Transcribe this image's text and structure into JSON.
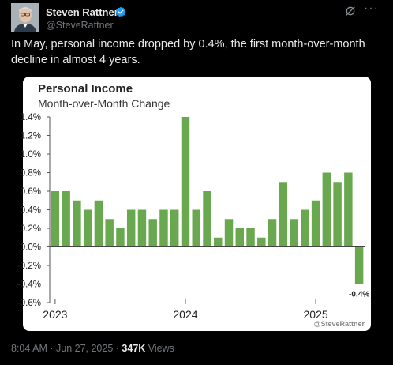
{
  "author": {
    "display_name": "Steven Rattner",
    "handle": "@SteveRattner"
  },
  "tweet": {
    "text": "In May, personal income dropped by 0.4%, the first month-over-month decline in almost 4 years."
  },
  "icons": {
    "verified": "verified-badge-icon",
    "grok": "grok-icon",
    "more": "more-icon"
  },
  "colors": {
    "bar": "#6aa84f",
    "verified": "#1d9bf0"
  },
  "chart_data": {
    "type": "bar",
    "title": "Personal Income",
    "subtitle": "Month-over-Month Change",
    "ylim": [
      -0.6,
      1.4
    ],
    "yticks": [
      "1.4%",
      "1.2%",
      "1.0%",
      "0.8%",
      "0.6%",
      "0.4%",
      "0.2%",
      "0.0%",
      "-0.2%",
      "-0.4%",
      "-0.6%"
    ],
    "ytick_values": [
      1.4,
      1.2,
      1.0,
      0.8,
      0.6,
      0.4,
      0.2,
      0.0,
      -0.2,
      -0.4,
      -0.6
    ],
    "x_labels": [
      {
        "text": "2023",
        "index": 0
      },
      {
        "text": "2024",
        "index": 12
      },
      {
        "text": "2025",
        "index": 24
      }
    ],
    "values": [
      0.6,
      0.6,
      0.5,
      0.4,
      0.5,
      0.3,
      0.2,
      0.4,
      0.4,
      0.3,
      0.4,
      0.4,
      1.4,
      0.4,
      0.6,
      0.1,
      0.3,
      0.2,
      0.2,
      0.1,
      0.3,
      0.7,
      0.3,
      0.4,
      0.5,
      0.8,
      0.7,
      0.8,
      -0.4
    ],
    "annotation": "-0.4%",
    "grid": false,
    "watermark": "@SteveRattner"
  },
  "meta": {
    "time": "8:04 AM",
    "date": "Jun 27, 2025",
    "views_count": "347K",
    "views_label": "Views"
  }
}
